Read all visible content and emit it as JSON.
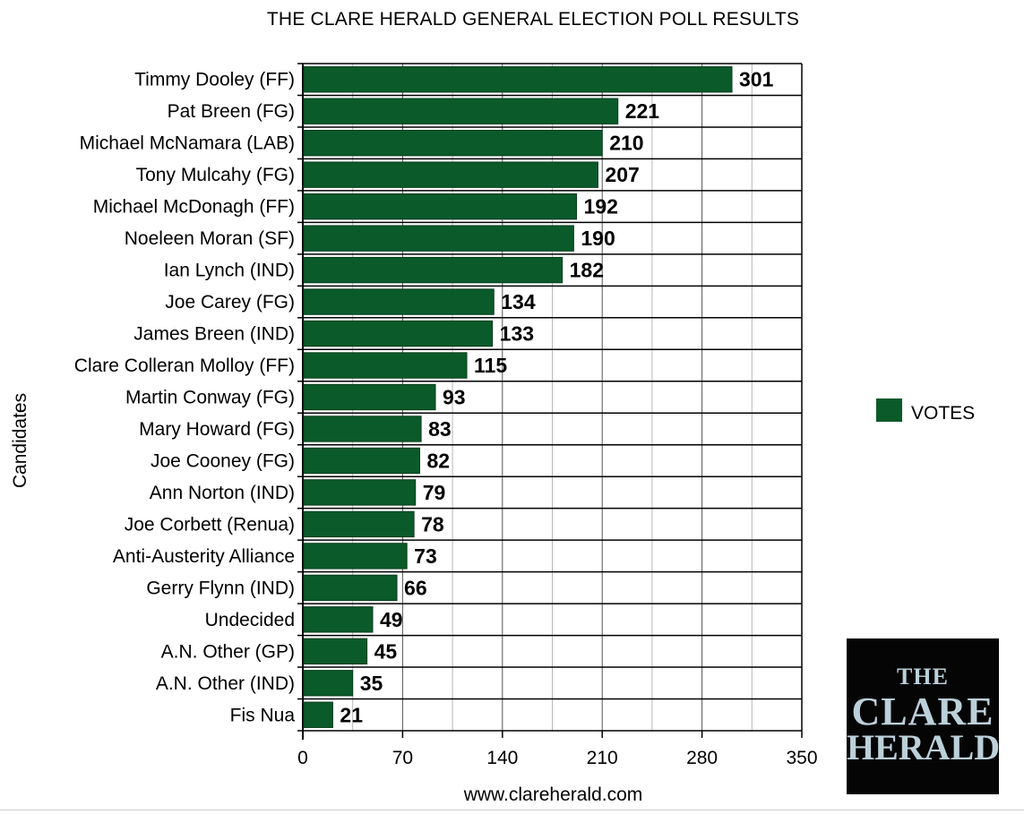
{
  "chart_data": {
    "type": "bar",
    "orientation": "horizontal",
    "title": "THE CLARE HERALD GENERAL ELECTION POLL RESULTS",
    "ylabel": "Candidates",
    "xlabel": "www.clareherald.com",
    "xlim": [
      0,
      350
    ],
    "xticks": [
      0,
      70,
      140,
      210,
      280,
      350
    ],
    "grid": true,
    "legend_position": "right",
    "bar_color": "#0b5a2a",
    "series": [
      {
        "name": "VOTES"
      }
    ],
    "categories": [
      "Timmy Dooley (FF)",
      "Pat Breen (FG)",
      "Michael McNamara (LAB)",
      "Tony Mulcahy (FG)",
      "Michael McDonagh (FF)",
      "Noeleen Moran (SF)",
      "Ian Lynch (IND)",
      "Joe Carey (FG)",
      "James Breen (IND)",
      "Clare Colleran Molloy (FF)",
      "Martin Conway (FG)",
      "Mary Howard (FG)",
      "Joe Cooney (FG)",
      "Ann Norton (IND)",
      "Joe Corbett (Renua)",
      "Anti-Austerity Alliance",
      "Gerry Flynn (IND)",
      "Undecided",
      "A.N. Other (GP)",
      "A.N. Other (IND)",
      "Fis Nua"
    ],
    "values": [
      301,
      221,
      210,
      207,
      192,
      190,
      182,
      134,
      133,
      115,
      93,
      83,
      82,
      79,
      78,
      73,
      66,
      49,
      45,
      35,
      21
    ]
  },
  "logo": {
    "line1": "THE",
    "line2": "CLARE",
    "line3": "HERALD"
  }
}
